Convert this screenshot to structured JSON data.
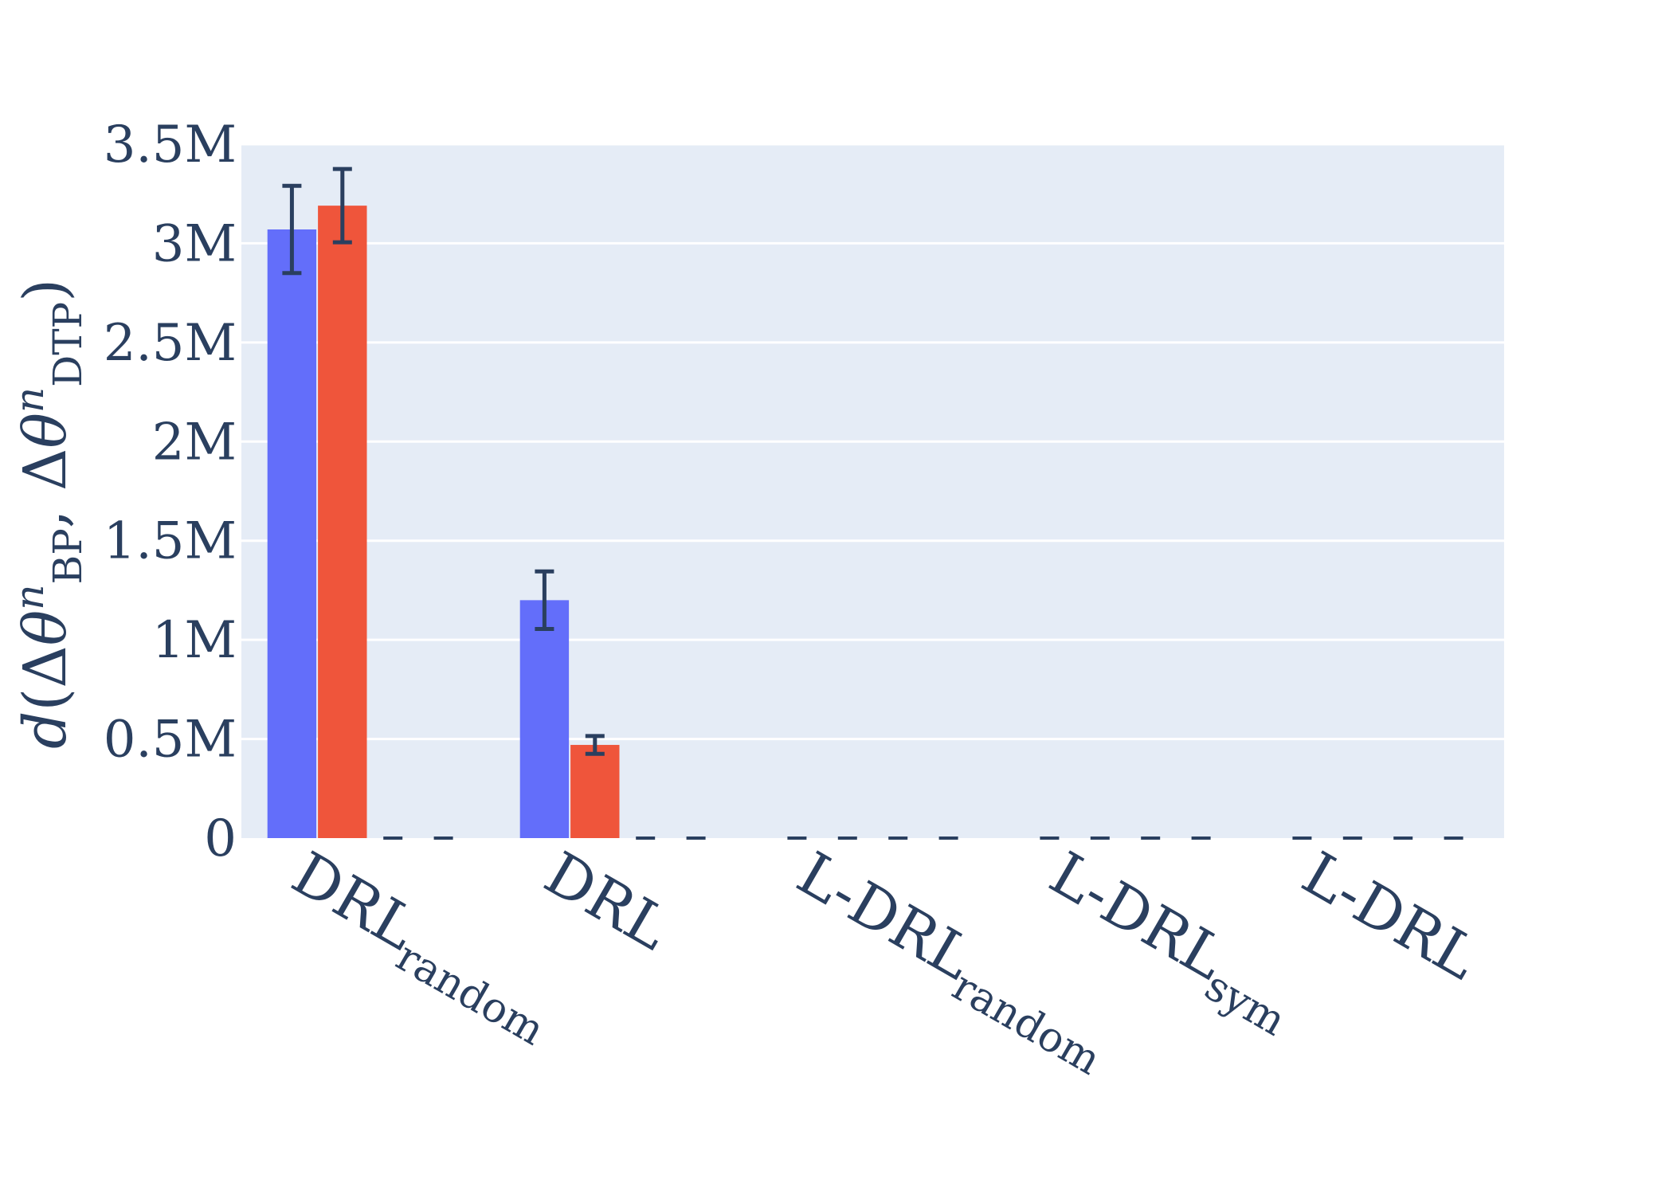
{
  "chart_data": {
    "type": "bar",
    "ylabel": "d(Δθⁿ_BP, Δθⁿ_DTP)",
    "ylabel_parts": {
      "func": "d",
      "open": "(Δ",
      "theta": "θ",
      "sup": "n",
      "sub1": "BP",
      "comma": ", Δ",
      "sub2": "DTP",
      "close": ")"
    },
    "ylim": [
      0,
      3500000
    ],
    "yticks": [
      0,
      500000,
      1000000,
      1500000,
      2000000,
      2500000,
      3000000,
      3500000
    ],
    "ytick_labels": [
      "0",
      "0.5M",
      "1M",
      "1.5M",
      "2M",
      "2.5M",
      "3M",
      "3.5M"
    ],
    "categories": [
      {
        "main": "DRL",
        "sub": "random"
      },
      {
        "main": "DRL",
        "sub": ""
      },
      {
        "main": "L-DRL",
        "sub": "random"
      },
      {
        "main": "L-DRL",
        "sub": "sym"
      },
      {
        "main": "L-DRL",
        "sub": ""
      }
    ],
    "series": [
      {
        "color": "#636efa",
        "values": [
          3070000,
          1200000,
          0,
          0,
          0
        ],
        "error": [
          220000,
          145000,
          0,
          0,
          0
        ]
      },
      {
        "color": "#ef553b",
        "values": [
          3190000,
          470000,
          0,
          0,
          0
        ],
        "error": [
          185000,
          45000,
          0,
          0,
          0
        ]
      },
      {
        "color": "#00cc96",
        "values": [
          0,
          0,
          0,
          0,
          0
        ],
        "error": [
          0,
          0,
          0,
          0,
          0
        ]
      },
      {
        "color": "#ab63fa",
        "values": [
          0,
          0,
          0,
          0,
          0
        ],
        "error": [
          0,
          0,
          0,
          0,
          0
        ]
      }
    ],
    "grid": true,
    "legend": "none",
    "colors": {
      "plot_bg": "#e5ecf6",
      "grid": "#ffffff",
      "text": "#2a3f5f",
      "error_bar": "#2a3f5f"
    }
  }
}
